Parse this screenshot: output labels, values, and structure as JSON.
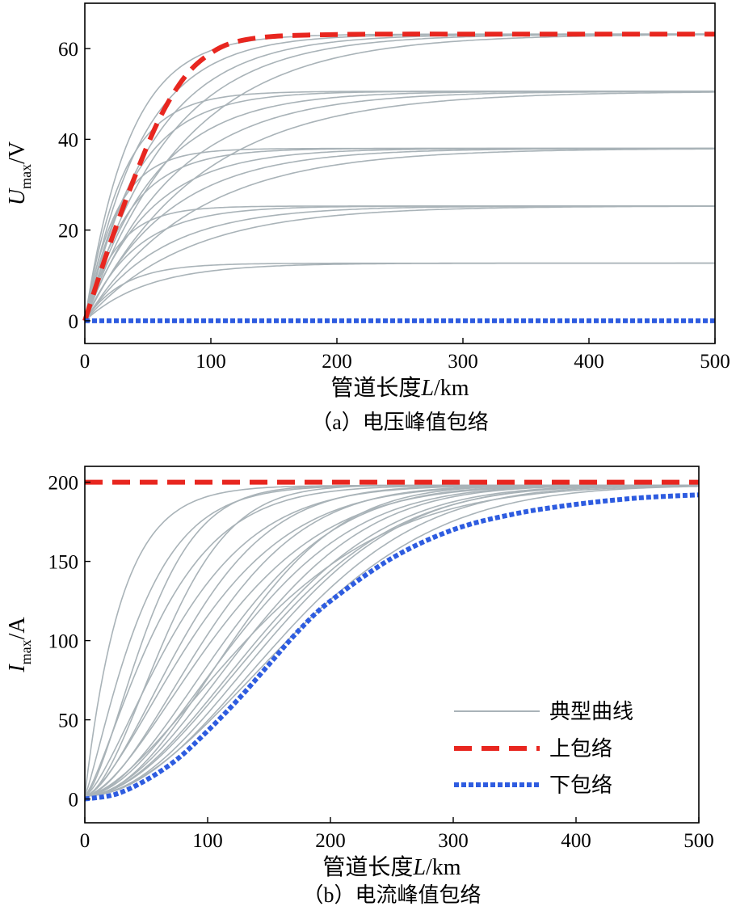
{
  "chart_data": [
    {
      "type": "line",
      "caption": "（a）电压峰值包络",
      "xlabel_prefix": "管道长度",
      "xlabel_var": "L",
      "xlabel_unit": "/km",
      "ylabel_var": "U",
      "ylabel_sub": "max",
      "ylabel_unit": "/V",
      "xlim": [
        0,
        500
      ],
      "ylim": [
        -5,
        70
      ],
      "xticks": [
        0,
        100,
        200,
        300,
        400,
        500
      ],
      "yticks": [
        0,
        20,
        40,
        60
      ],
      "colors": {
        "typical": "#a9b3b8",
        "upper": "#e8261f",
        "lower": "#2e5ce0"
      },
      "typical_curves": [
        {
          "plateau": 12.7,
          "k": 30
        },
        {
          "plateau": 12.7,
          "k": 50
        },
        {
          "plateau": 25.3,
          "k": 25
        },
        {
          "plateau": 25.3,
          "k": 40
        },
        {
          "plateau": 25.3,
          "k": 60
        },
        {
          "plateau": 25.3,
          "k": 80
        },
        {
          "plateau": 38.0,
          "k": 25
        },
        {
          "plateau": 38.0,
          "k": 35
        },
        {
          "plateau": 38.0,
          "k": 50
        },
        {
          "plateau": 38.0,
          "k": 65
        },
        {
          "plateau": 38.0,
          "k": 85
        },
        {
          "plateau": 50.6,
          "k": 30
        },
        {
          "plateau": 50.6,
          "k": 40
        },
        {
          "plateau": 50.6,
          "k": 55
        },
        {
          "plateau": 50.6,
          "k": 70
        },
        {
          "plateau": 50.6,
          "k": 90
        },
        {
          "plateau": 63.2,
          "k": 35
        },
        {
          "plateau": 63.2,
          "k": 45
        },
        {
          "plateau": 63.2,
          "k": 55
        },
        {
          "plateau": 63.2,
          "k": 65
        },
        {
          "plateau": 63.2,
          "k": 80
        }
      ],
      "upper_envelope": {
        "x": [
          0,
          20,
          40,
          60,
          80,
          100,
          120,
          150,
          200,
          250,
          300,
          400,
          500
        ],
        "y": [
          0,
          17,
          32,
          45,
          54,
          59,
          61.5,
          62.7,
          63.1,
          63.2,
          63.2,
          63.2,
          63.2
        ]
      },
      "lower_envelope": {
        "x": [
          0,
          500
        ],
        "y": [
          0,
          0
        ]
      }
    },
    {
      "type": "line",
      "caption": "（b）电流峰值包络",
      "xlabel_prefix": "管道长度",
      "xlabel_var": "L",
      "xlabel_unit": "/km",
      "ylabel_var": "I",
      "ylabel_sub": "max",
      "ylabel_unit": "/A",
      "xlim": [
        0,
        500
      ],
      "ylim": [
        -15,
        210
      ],
      "xticks": [
        0,
        100,
        200,
        300,
        400,
        500
      ],
      "yticks": [
        0,
        50,
        100,
        150,
        200
      ],
      "colors": {
        "typical": "#a9b3b8",
        "upper": "#e8261f",
        "lower": "#2e5ce0"
      },
      "typical_curves": [
        {
          "x0": 0,
          "k": 30,
          "p": 1.0
        },
        {
          "x0": 0,
          "k": 50,
          "p": 1.2
        },
        {
          "x0": 5,
          "k": 70,
          "p": 1.3
        },
        {
          "x0": 10,
          "k": 90,
          "p": 1.4
        },
        {
          "x0": 0,
          "k": 60,
          "p": 1.5
        },
        {
          "x0": 15,
          "k": 110,
          "p": 1.5
        },
        {
          "x0": 20,
          "k": 130,
          "p": 1.6
        },
        {
          "x0": 10,
          "k": 80,
          "p": 1.7
        },
        {
          "x0": 25,
          "k": 100,
          "p": 1.6
        },
        {
          "x0": 30,
          "k": 120,
          "p": 1.7
        },
        {
          "x0": 35,
          "k": 140,
          "p": 1.8
        },
        {
          "x0": 40,
          "k": 150,
          "p": 1.8
        },
        {
          "x0": 45,
          "k": 160,
          "p": 1.9
        },
        {
          "x0": 50,
          "k": 170,
          "p": 1.9
        },
        {
          "x0": 55,
          "k": 180,
          "p": 2.0
        },
        {
          "x0": 20,
          "k": 145,
          "p": 2.0
        },
        {
          "x0": 40,
          "k": 190,
          "p": 2.0
        },
        {
          "x0": 60,
          "k": 175,
          "p": 1.9
        },
        {
          "x0": 10,
          "k": 165,
          "p": 1.6
        },
        {
          "x0": 30,
          "k": 200,
          "p": 1.9
        }
      ],
      "upper_envelope": {
        "x": [
          0,
          500
        ],
        "y": [
          200,
          200
        ]
      },
      "lower_envelope": {
        "x": [
          0,
          25,
          50,
          75,
          100,
          125,
          150,
          175,
          200,
          250,
          300,
          350,
          400,
          450,
          500
        ],
        "y": [
          0,
          3,
          12,
          25,
          43,
          63,
          85,
          107,
          125,
          152,
          170,
          180,
          186,
          190,
          192
        ]
      },
      "legend": {
        "position": "lower-right",
        "items": [
          {
            "key": "typical",
            "label": "典型曲线",
            "style": "solid"
          },
          {
            "key": "upper",
            "label": "上包络",
            "style": "dashed"
          },
          {
            "key": "lower",
            "label": "下包络",
            "style": "dotted"
          }
        ]
      }
    }
  ]
}
